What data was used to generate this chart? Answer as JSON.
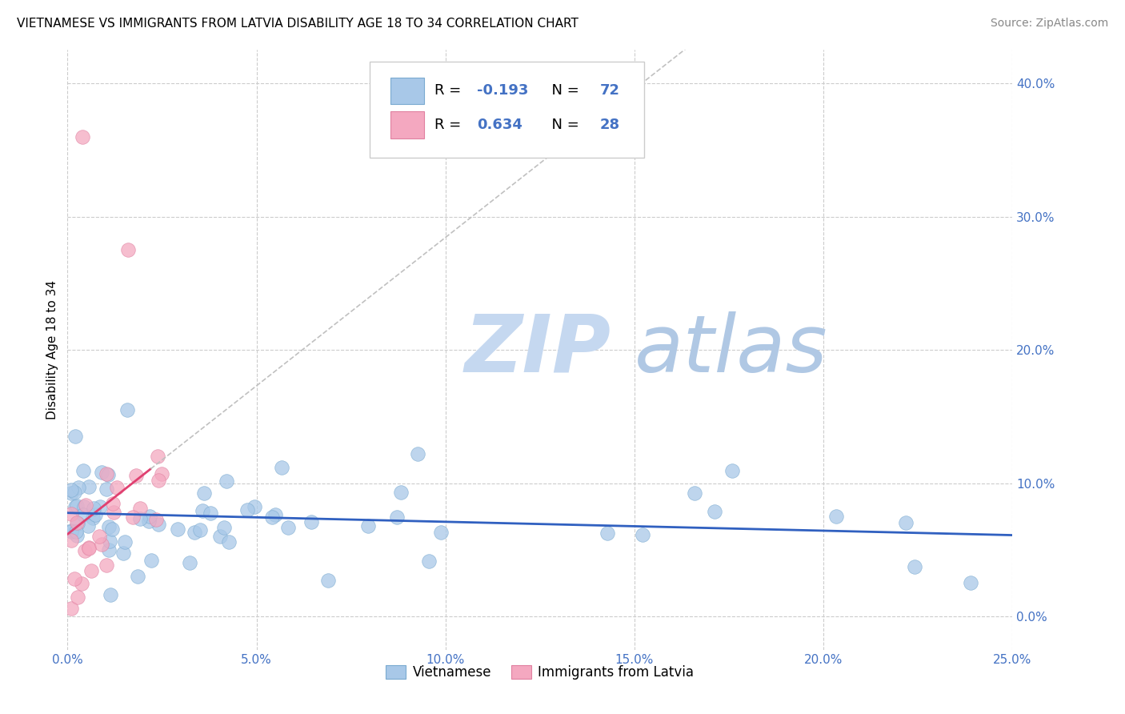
{
  "title": "VIETNAMESE VS IMMIGRANTS FROM LATVIA DISABILITY AGE 18 TO 34 CORRELATION CHART",
  "source": "Source: ZipAtlas.com",
  "ylabel": "Disability Age 18 to 34",
  "xlim": [
    0.0,
    0.25
  ],
  "ylim": [
    -0.025,
    0.425
  ],
  "xticks": [
    0.0,
    0.05,
    0.1,
    0.15,
    0.2,
    0.25
  ],
  "yticks": [
    0.0,
    0.1,
    0.2,
    0.3,
    0.4
  ],
  "viet_color": "#a8c8e8",
  "latvia_color": "#f4a8c0",
  "viet_edge_color": "#7aaad0",
  "latvia_edge_color": "#e080a0",
  "viet_line_color": "#3060c0",
  "latvia_line_color": "#e04070",
  "viet_R": -0.193,
  "viet_N": 72,
  "latvia_R": 0.634,
  "latvia_N": 28,
  "watermark_zip": "ZIP",
  "watermark_atlas": "atlas",
  "watermark_color_zip": "#c8d8f0",
  "watermark_color_atlas": "#b0c8e8",
  "legend_label_viet": "Vietnamese",
  "legend_label_latvia": "Immigrants from Latvia",
  "title_fontsize": 11,
  "source_fontsize": 10,
  "tick_fontsize": 11,
  "ylabel_fontsize": 11
}
